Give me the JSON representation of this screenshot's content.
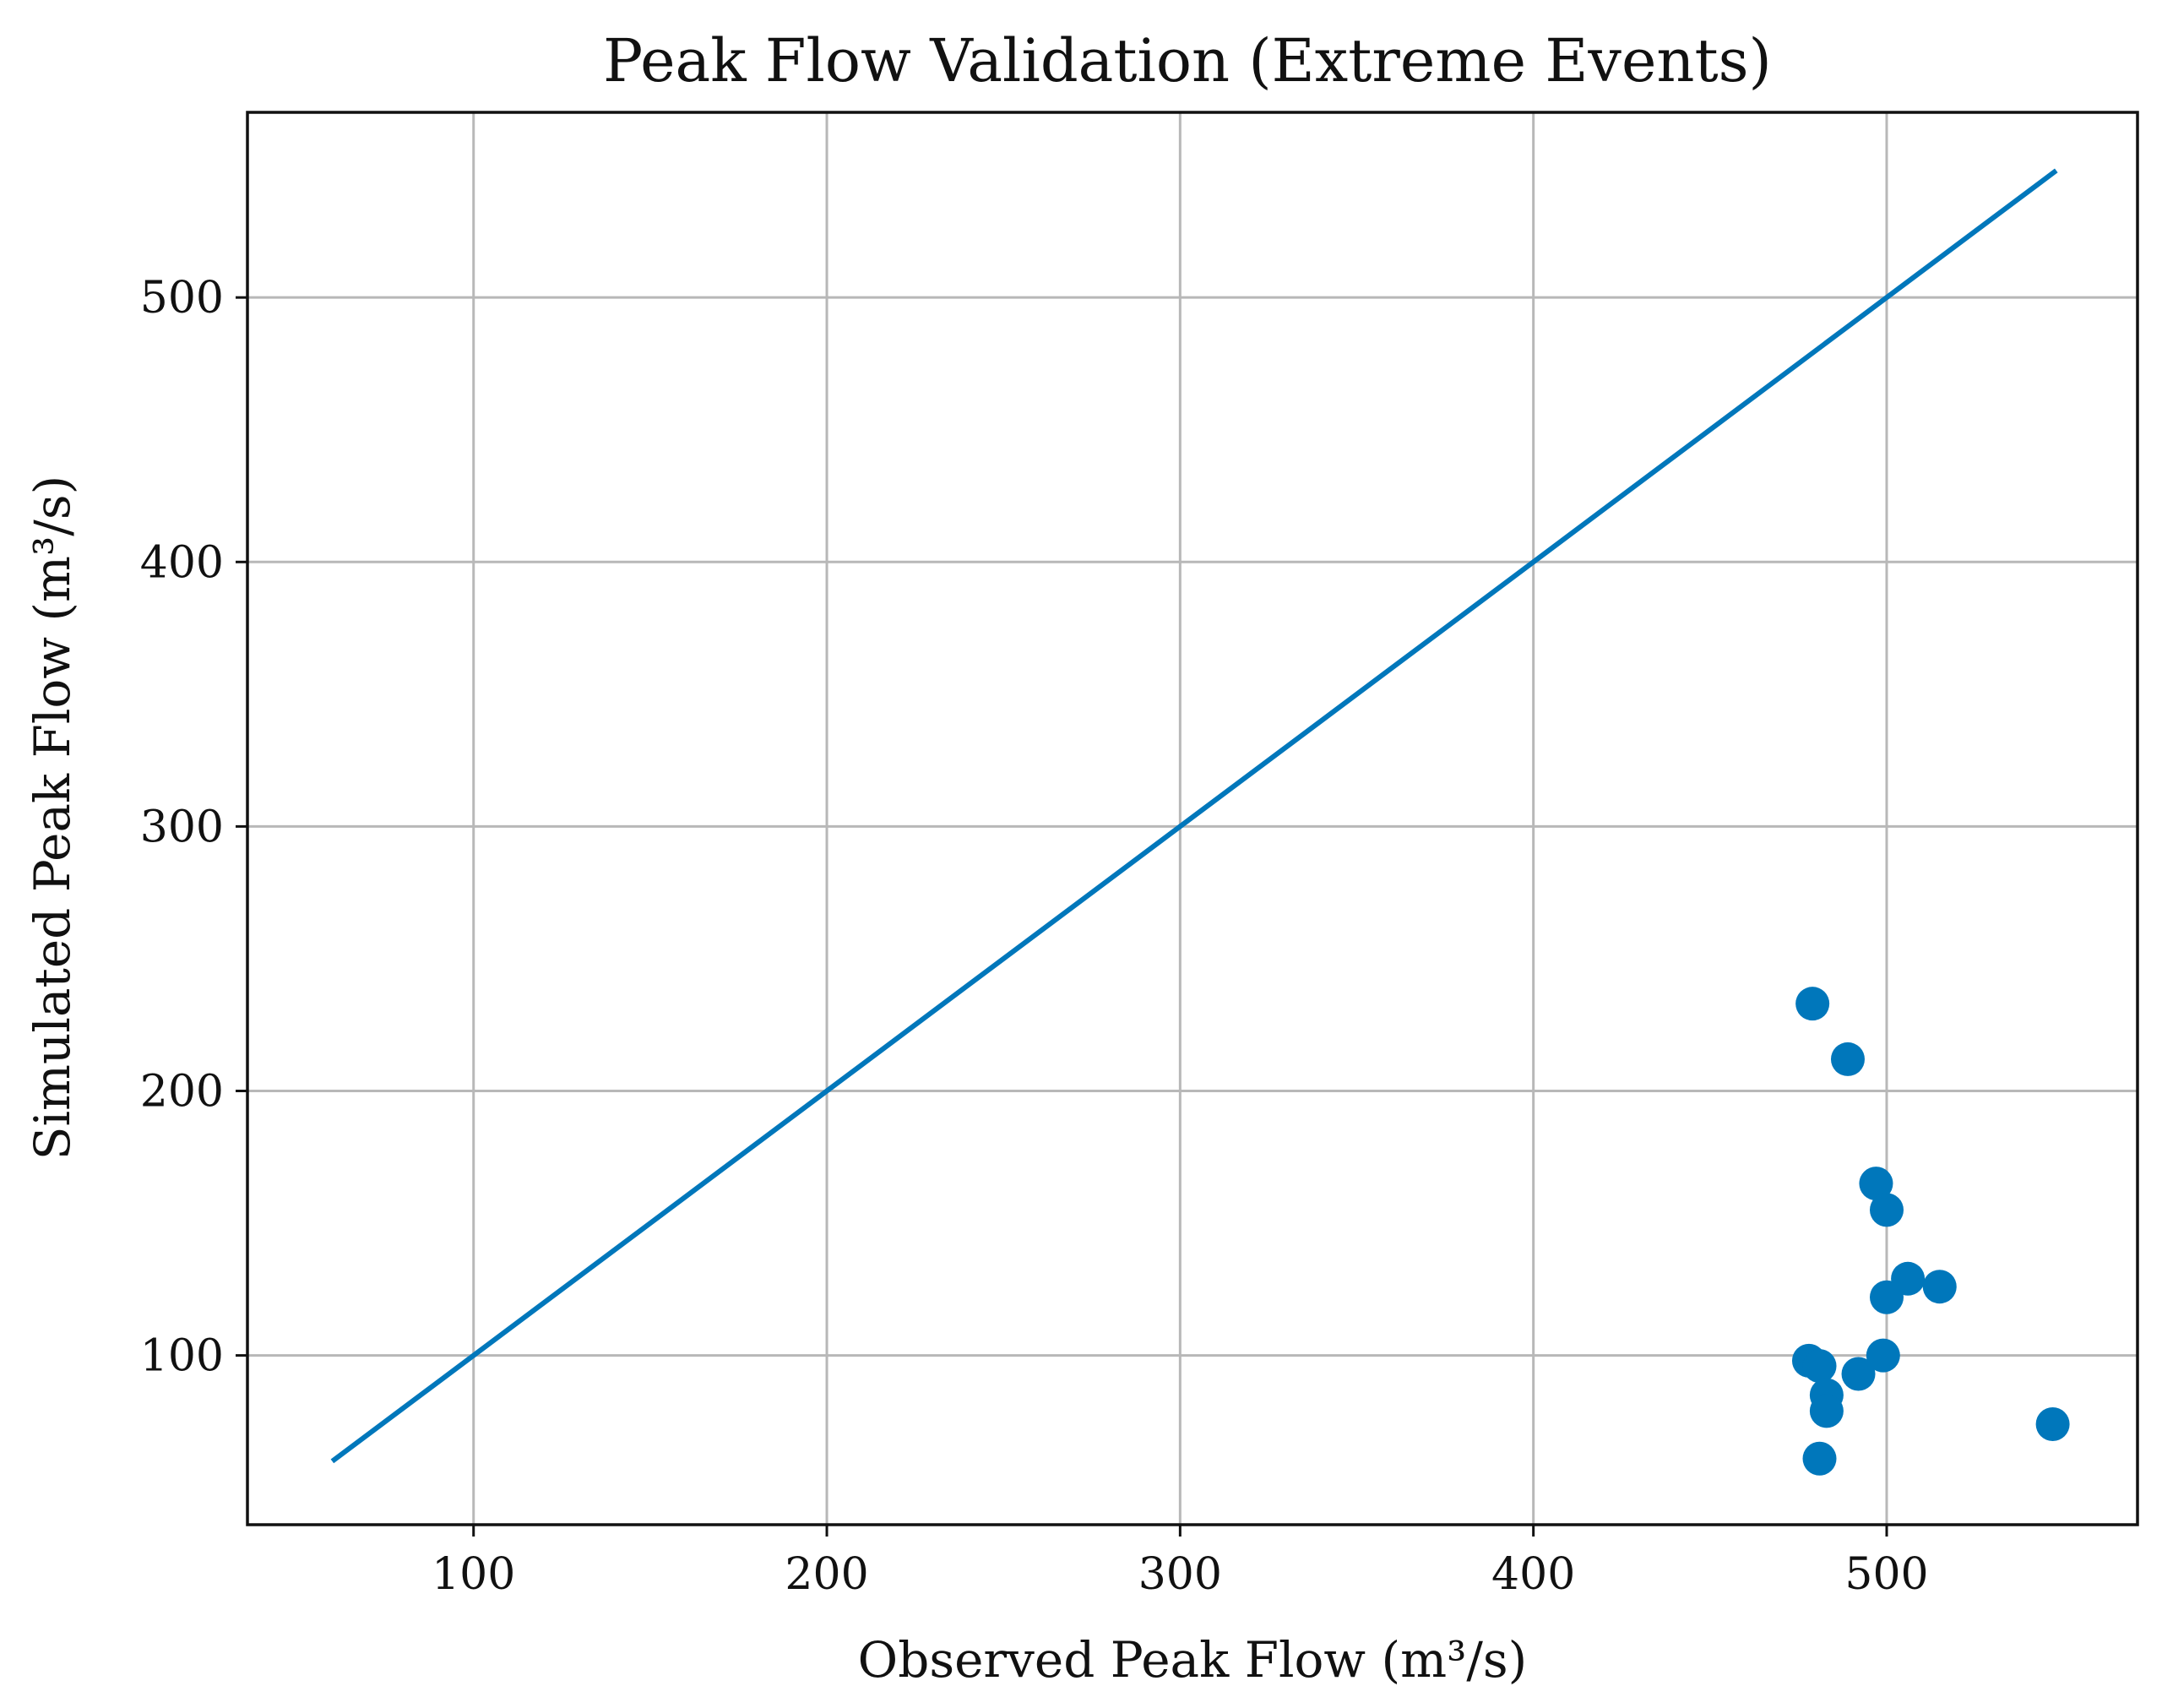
{
  "chart_data": {
    "type": "scatter",
    "title": "Peak Flow Validation (Extreme Events)",
    "xlabel": "Observed Peak Flow (m³/s)",
    "ylabel": "Simulated Peak Flow (m³/s)",
    "xlim": [
      36,
      571
    ],
    "ylim": [
      36,
      570
    ],
    "xticks": [
      100,
      200,
      300,
      400,
      500
    ],
    "yticks": [
      100,
      200,
      300,
      400,
      500
    ],
    "grid": true,
    "colors": {
      "points": "#0077bb",
      "line": "#0077bb"
    },
    "reference_line": {
      "x": [
        60,
        548
      ],
      "y": [
        60,
        548
      ]
    },
    "points": [
      {
        "x": 479,
        "y": 233
      },
      {
        "x": 489,
        "y": 212
      },
      {
        "x": 497,
        "y": 165
      },
      {
        "x": 500,
        "y": 155
      },
      {
        "x": 506,
        "y": 129
      },
      {
        "x": 515,
        "y": 126
      },
      {
        "x": 500,
        "y": 122
      },
      {
        "x": 499,
        "y": 100
      },
      {
        "x": 478,
        "y": 98
      },
      {
        "x": 481,
        "y": 96
      },
      {
        "x": 492,
        "y": 93
      },
      {
        "x": 483,
        "y": 85
      },
      {
        "x": 483,
        "y": 79
      },
      {
        "x": 481,
        "y": 61
      },
      {
        "x": 547,
        "y": 74
      }
    ]
  }
}
